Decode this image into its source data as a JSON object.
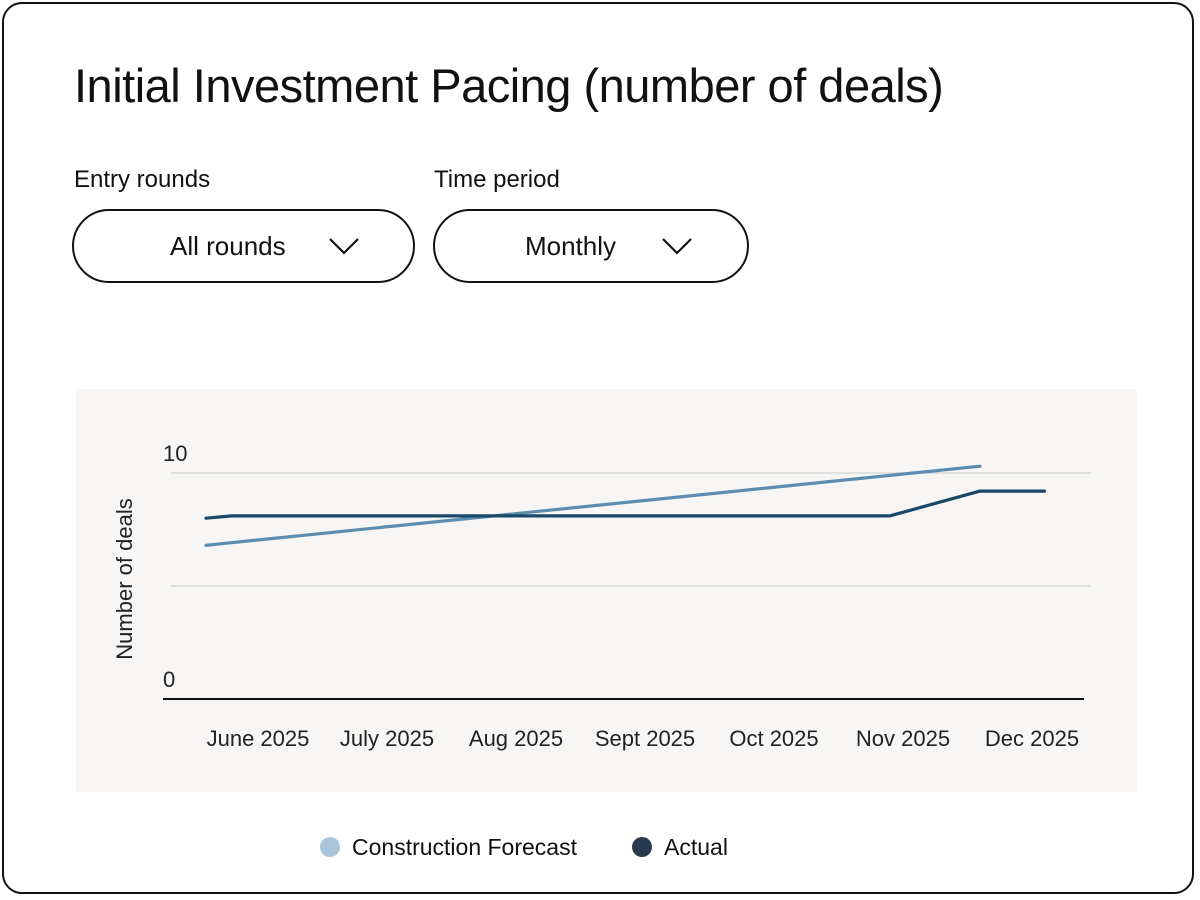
{
  "title": "Initial Investment Pacing (number of deals)",
  "filters": {
    "entry_rounds": {
      "label": "Entry rounds",
      "value": "All rounds",
      "icon": "chevron-down-icon"
    },
    "time_period": {
      "label": "Time period",
      "value": "Monthly",
      "icon": "chevron-down-icon"
    }
  },
  "chart_data": {
    "type": "line",
    "title": "Initial Investment Pacing (number of deals)",
    "xlabel": "",
    "ylabel": "Number of deals",
    "categories": [
      "June 2025",
      "July 2025",
      "Aug 2025",
      "Sept 2025",
      "Oct 2025",
      "Nov 2025",
      "Dec 2025"
    ],
    "ylim": [
      0,
      10
    ],
    "yticks": [
      0,
      10
    ],
    "grid": true,
    "legend_position": "bottom",
    "series": [
      {
        "name": "Construction Forecast",
        "color": "#5b8db0",
        "legend_color": "#aac5da",
        "points": [
          [
            0,
            6.8
          ],
          [
            6,
            10.3
          ]
        ]
      },
      {
        "name": "Actual",
        "color": "#1a4868",
        "legend_color": "#283a4d",
        "points": [
          [
            0,
            8.0
          ],
          [
            0.2,
            8.1
          ],
          [
            5.3,
            8.1
          ],
          [
            6.0,
            9.2
          ],
          [
            6.5,
            9.2
          ]
        ]
      }
    ]
  }
}
